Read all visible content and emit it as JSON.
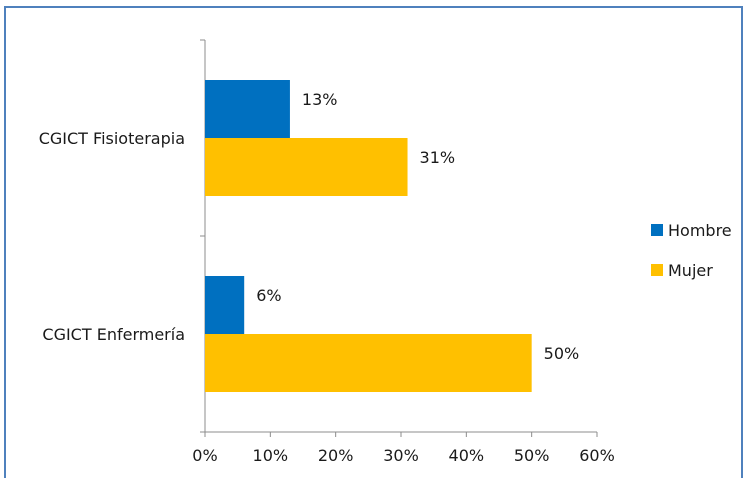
{
  "chart_data": {
    "type": "bar",
    "orientation": "horizontal",
    "categories": [
      "CGICT Fisioterapia",
      "CGICT Enfermería"
    ],
    "series": [
      {
        "name": "Hombre",
        "values": [
          13,
          6
        ],
        "labels": [
          "13%",
          "6%"
        ],
        "color": "#0070c0"
      },
      {
        "name": "Mujer",
        "values": [
          31,
          50
        ],
        "labels": [
          "31%",
          "50%"
        ],
        "color": "#ffc000"
      }
    ],
    "xlim": [
      0,
      60
    ],
    "xticks": [
      0,
      10,
      20,
      30,
      40,
      50,
      60
    ],
    "xtick_labels": [
      "0%",
      "10%",
      "20%",
      "30%",
      "40%",
      "50%",
      "60%"
    ],
    "grid": false,
    "legend_position": "right"
  }
}
